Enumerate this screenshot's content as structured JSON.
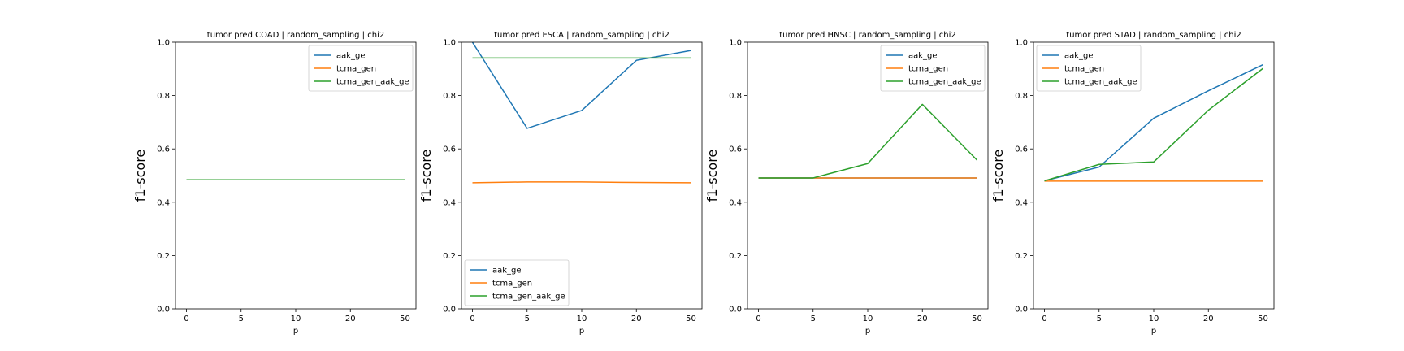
{
  "colors": {
    "aak_ge": "#1f77b4",
    "tcma_gen": "#ff7f0e",
    "tcma_gen_aak_ge": "#2ca02c"
  },
  "chart_data": [
    {
      "type": "line",
      "title": "tumor pred COAD | random_sampling | chi2",
      "xlabel": "p",
      "ylabel": "f1-score",
      "categories": [
        "0",
        "5",
        "10",
        "20",
        "50"
      ],
      "ylim": [
        0.0,
        1.0
      ],
      "yticks": [
        "0.0",
        "0.2",
        "0.4",
        "0.6",
        "0.8",
        "1.0"
      ],
      "legend_loc": "upper-right",
      "series": [
        {
          "name": "aak_ge",
          "values": [
            0.484,
            0.484,
            0.484,
            0.484,
            0.484
          ]
        },
        {
          "name": "tcma_gen",
          "values": [
            0.484,
            0.484,
            0.484,
            0.484,
            0.484
          ]
        },
        {
          "name": "tcma_gen_aak_ge",
          "values": [
            0.484,
            0.484,
            0.484,
            0.484,
            0.484
          ]
        }
      ]
    },
    {
      "type": "line",
      "title": "tumor pred ESCA | random_sampling | chi2",
      "xlabel": "p",
      "ylabel": "f1-score",
      "categories": [
        "0",
        "5",
        "10",
        "20",
        "50"
      ],
      "ylim": [
        0.0,
        1.0
      ],
      "yticks": [
        "0.0",
        "0.2",
        "0.4",
        "0.6",
        "0.8",
        "1.0"
      ],
      "legend_loc": "lower-left",
      "series": [
        {
          "name": "aak_ge",
          "values": [
            1.0,
            0.677,
            0.744,
            0.932,
            0.969
          ]
        },
        {
          "name": "tcma_gen",
          "values": [
            0.473,
            0.476,
            0.476,
            0.474,
            0.473
          ]
        },
        {
          "name": "tcma_gen_aak_ge",
          "values": [
            0.941,
            0.941,
            0.941,
            0.941,
            0.941
          ]
        }
      ]
    },
    {
      "type": "line",
      "title": "tumor pred HNSC | random_sampling | chi2",
      "xlabel": "p",
      "ylabel": "f1-score",
      "categories": [
        "0",
        "5",
        "10",
        "20",
        "50"
      ],
      "ylim": [
        0.0,
        1.0
      ],
      "yticks": [
        "0.0",
        "0.2",
        "0.4",
        "0.6",
        "0.8",
        "1.0"
      ],
      "legend_loc": "upper-right",
      "series": [
        {
          "name": "aak_ge",
          "values": [
            0.491,
            0.491,
            0.491,
            0.491,
            0.491
          ]
        },
        {
          "name": "tcma_gen",
          "values": [
            0.491,
            0.491,
            0.491,
            0.491,
            0.491
          ]
        },
        {
          "name": "tcma_gen_aak_ge",
          "values": [
            0.491,
            0.491,
            0.545,
            0.767,
            0.558
          ]
        }
      ]
    },
    {
      "type": "line",
      "title": "tumor pred STAD | random_sampling | chi2",
      "xlabel": "p",
      "ylabel": "f1-score",
      "categories": [
        "0",
        "5",
        "10",
        "20",
        "50"
      ],
      "ylim": [
        0.0,
        1.0
      ],
      "yticks": [
        "0.0",
        "0.2",
        "0.4",
        "0.6",
        "0.8",
        "1.0"
      ],
      "legend_loc": "upper-left",
      "series": [
        {
          "name": "aak_ge",
          "values": [
            0.48,
            0.532,
            0.715,
            0.818,
            0.916
          ]
        },
        {
          "name": "tcma_gen",
          "values": [
            0.479,
            0.479,
            0.479,
            0.479,
            0.479
          ]
        },
        {
          "name": "tcma_gen_aak_ge",
          "values": [
            0.48,
            0.542,
            0.551,
            0.745,
            0.902
          ]
        }
      ]
    }
  ]
}
